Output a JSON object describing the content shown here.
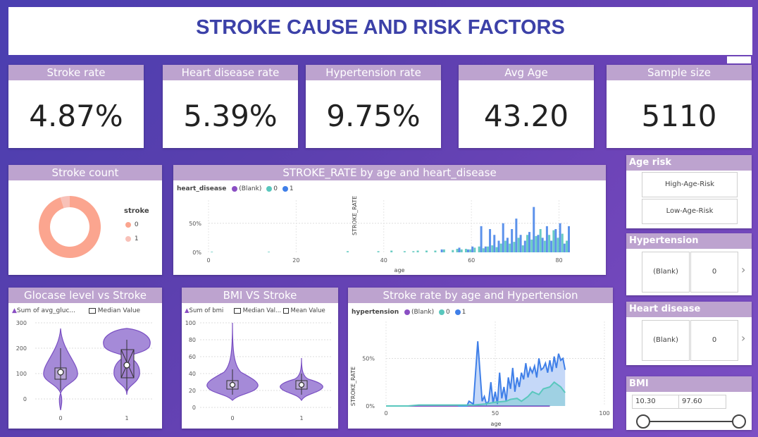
{
  "title": "STROKE CAUSE AND RISK FACTORS",
  "kpis": [
    {
      "label": "Stroke rate",
      "value": "4.87%"
    },
    {
      "label": "Heart disease rate",
      "value": "5.39%"
    },
    {
      "label": "Hypertension rate",
      "value": "9.75%"
    },
    {
      "label": "Avg Age",
      "value": "43.20"
    },
    {
      "label": "Sample size",
      "value": "5110"
    }
  ],
  "donut": {
    "title": "Stroke count",
    "legend_title": "stroke",
    "legend": [
      {
        "label": "0",
        "color": "#fba58f"
      },
      {
        "label": "1",
        "color": "#f8c1b8"
      }
    ]
  },
  "heart_chart": {
    "title": "STROKE_RATE by age and heart_disease",
    "legend_title": "heart_disease",
    "legend": [
      {
        "label": "(Blank)",
        "color": "#8a4fc3"
      },
      {
        "label": "0",
        "color": "#59c7bd"
      },
      {
        "label": "1",
        "color": "#3f7fe8"
      }
    ],
    "ylabel": "STROKE_RATE",
    "xlabel": "age",
    "yticks": [
      "50%",
      "0%"
    ],
    "xticks": [
      "0",
      "20",
      "40",
      "60",
      "80"
    ]
  },
  "glucose": {
    "title": "Glocase level vs Stroke",
    "legend1": "Sum of avg_gluc...",
    "legend2": "Median Value",
    "yticks": [
      "300",
      "200",
      "100",
      "0"
    ],
    "xticks": [
      "0",
      "1"
    ]
  },
  "bmi_chart": {
    "title": "BMI VS Stroke",
    "legend1": "Sum of bmi",
    "legend2": "Median Val...",
    "legend3": "Mean Value",
    "yticks": [
      "100",
      "80",
      "60",
      "40",
      "20",
      "0"
    ],
    "xticks": [
      "0",
      "1"
    ]
  },
  "hyper_chart": {
    "title": "Stroke rate by age and Hypertension",
    "legend_title": "hypertension",
    "legend": [
      {
        "label": "(Blank)",
        "color": "#8a4fc3"
      },
      {
        "label": "0",
        "color": "#59c7bd"
      },
      {
        "label": "1",
        "color": "#3f7fe8"
      }
    ],
    "ylabel": "STROKE_RATE",
    "xlabel": "age",
    "yticks": [
      "50%",
      "0%"
    ],
    "xticks": [
      "0",
      "50",
      "100"
    ]
  },
  "slicers": {
    "age_risk": {
      "title": "Age risk",
      "items": [
        "High-Age-Risk",
        "Low-Age-Risk"
      ]
    },
    "hypertension": {
      "title": "Hypertension",
      "items": [
        "(Blank)",
        "0"
      ]
    },
    "heart_disease": {
      "title": "Heart disease",
      "items": [
        "(Blank)",
        "0"
      ]
    },
    "bmi": {
      "title": "BMI",
      "min": "10.30",
      "max": "97.60"
    }
  },
  "chart_data": [
    {
      "type": "pie",
      "title": "Stroke count",
      "categories": [
        "0",
        "1"
      ],
      "values": [
        4861,
        249
      ]
    },
    {
      "type": "bar",
      "title": "STROKE_RATE by age and heart_disease",
      "xlabel": "age",
      "ylabel": "STROKE_RATE",
      "ylim": [
        0,
        0.8
      ],
      "xlim": [
        0,
        82
      ],
      "series": [
        {
          "name": "0",
          "x": [
            1,
            14,
            32,
            39,
            42,
            45,
            47,
            48,
            50,
            52,
            54,
            56,
            57,
            58,
            59,
            60,
            61,
            62,
            63,
            64,
            65,
            66,
            67,
            68,
            69,
            70,
            71,
            72,
            73,
            74,
            75,
            76,
            77,
            78,
            79,
            80,
            81,
            82
          ],
          "values": [
            0.01,
            0.01,
            0.02,
            0.02,
            0.03,
            0.02,
            0.02,
            0.03,
            0.03,
            0.03,
            0.05,
            0.04,
            0.06,
            0.05,
            0.06,
            0.05,
            0.08,
            0.1,
            0.07,
            0.1,
            0.12,
            0.09,
            0.15,
            0.2,
            0.15,
            0.18,
            0.25,
            0.12,
            0.3,
            0.22,
            0.28,
            0.4,
            0.2,
            0.3,
            0.38,
            0.25,
            0.32,
            0.2
          ]
        },
        {
          "name": "1",
          "x": [
            53,
            57,
            59,
            60,
            62,
            63,
            64,
            65,
            66,
            67,
            68,
            69,
            70,
            71,
            72,
            73,
            74,
            75,
            76,
            77,
            78,
            79,
            80,
            81,
            82
          ],
          "values": [
            0.05,
            0.08,
            0.05,
            0.1,
            0.45,
            0.1,
            0.4,
            0.3,
            0.2,
            0.5,
            0.25,
            0.4,
            0.58,
            0.3,
            0.2,
            0.35,
            0.78,
            0.3,
            0.25,
            0.45,
            0.2,
            0.4,
            0.5,
            0.15,
            0.45
          ]
        }
      ]
    },
    {
      "type": "line",
      "title": "Stroke rate by age and Hypertension",
      "xlabel": "age",
      "ylabel": "STROKE_RATE",
      "ylim": [
        0,
        0.8
      ],
      "xlim": [
        0,
        100
      ],
      "series": [
        {
          "name": "0",
          "x": [
            0,
            10,
            15,
            30,
            40,
            45,
            50,
            55,
            57,
            60,
            62,
            65,
            67,
            70,
            72,
            75,
            77,
            80,
            82
          ],
          "values": [
            0,
            0,
            0.01,
            0.01,
            0.01,
            0.02,
            0.04,
            0.05,
            0.07,
            0.08,
            0.05,
            0.1,
            0.15,
            0.12,
            0.18,
            0.2,
            0.25,
            0.2,
            0.14
          ]
        },
        {
          "name": "1",
          "x": [
            33,
            37,
            38,
            40,
            42,
            44,
            45,
            46,
            47,
            48,
            49,
            50,
            51,
            52,
            53,
            54,
            55,
            56,
            57,
            58,
            59,
            60,
            61,
            62,
            63,
            64,
            65,
            66,
            67,
            68,
            69,
            70,
            71,
            72,
            73,
            74,
            75,
            76,
            77,
            78,
            79,
            80,
            81,
            82
          ],
          "values": [
            0,
            0,
            0.05,
            0.02,
            0.68,
            0.05,
            0.1,
            0.02,
            0.05,
            0.25,
            0.03,
            0.15,
            0.02,
            0.35,
            0.08,
            0.2,
            0.05,
            0.3,
            0.18,
            0.4,
            0.15,
            0.3,
            0.2,
            0.35,
            0.28,
            0.45,
            0.3,
            0.4,
            0.35,
            0.42,
            0.3,
            0.5,
            0.38,
            0.4,
            0.45,
            0.35,
            0.48,
            0.36,
            0.52,
            0.4,
            0.55,
            0.48,
            0.5,
            0.38
          ]
        }
      ]
    }
  ]
}
